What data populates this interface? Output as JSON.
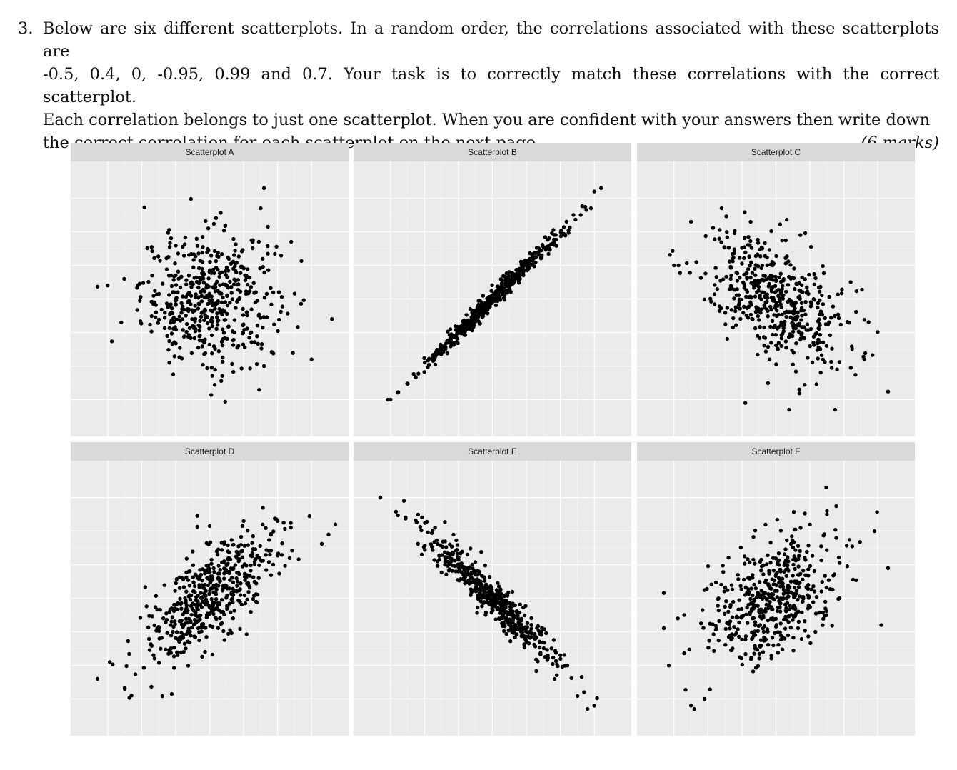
{
  "question": {
    "number": "3.",
    "line1": "Below are six different scatterplots. In a random order, the correlations associated with these scatterplots are",
    "line2": "-0.5, 0.4, 0, -0.95, 0.99 and 0.7. Your task is to correctly match these correlations with the correct scatterplot.",
    "line3": "Each correlation belongs to just one scatterplot. When you are confident with your answers then write down",
    "line4": "the correct correlation for each scatterplot on the next page.",
    "marks": "(6 marks)"
  },
  "chart_data": [
    {
      "type": "scatter",
      "title": "Scatterplot A",
      "correlation_sign": "none",
      "x_range": [
        -3.5,
        3.5
      ],
      "y_range": [
        -3.5,
        3.5
      ],
      "grid": true,
      "n_points": 500,
      "outliers": [
        [
          -3.0,
          0.4
        ],
        [
          3.6,
          -0.6
        ],
        [
          1.6,
          3.3
        ],
        [
          1.5,
          2.7
        ],
        [
          2.4,
          1.7
        ],
        [
          1.6,
          -2.0
        ],
        [
          -2.6,
          -0.7
        ]
      ]
    },
    {
      "type": "scatter",
      "title": "Scatterplot B",
      "correlation_sign": "strong-positive",
      "x_range": [
        -3.5,
        3.5
      ],
      "y_range": [
        -3.5,
        3.5
      ],
      "grid": true,
      "n_points": 500,
      "outliers": [
        [
          -3.0,
          -3.0
        ],
        [
          3.0,
          3.2
        ],
        [
          3.2,
          3.3
        ],
        [
          2.9,
          2.7
        ],
        [
          2.6,
          2.5
        ]
      ]
    },
    {
      "type": "scatter",
      "title": "Scatterplot C",
      "correlation_sign": "moderate-negative",
      "x_range": [
        -3.5,
        3.5
      ],
      "y_range": [
        -3.5,
        3.5
      ],
      "grid": true,
      "n_points": 500,
      "outliers": [
        [
          -2.5,
          2.3
        ],
        [
          -1.6,
          2.7
        ],
        [
          -3.0,
          1.0
        ],
        [
          2.2,
          0.5
        ],
        [
          2.6,
          -1.8
        ],
        [
          -0.9,
          -3.1
        ],
        [
          1.8,
          -2.1
        ]
      ]
    },
    {
      "type": "scatter",
      "title": "Scatterplot D",
      "correlation_sign": "positive",
      "x_range": [
        -3.5,
        3.5
      ],
      "y_range": [
        -3.5,
        3.5
      ],
      "grid": true,
      "n_points": 500,
      "outliers": [
        [
          -3.3,
          -2.4
        ],
        [
          3.7,
          2.2
        ],
        [
          3.5,
          1.9
        ],
        [
          -2.3,
          -2.9
        ],
        [
          -2.5,
          -2.7
        ],
        [
          1.0,
          2.3
        ],
        [
          2.0,
          2.3
        ]
      ]
    },
    {
      "type": "scatter",
      "title": "Scatterplot E",
      "correlation_sign": "strong-negative",
      "x_range": [
        -3.5,
        3.5
      ],
      "y_range": [
        -3.5,
        3.5
      ],
      "grid": true,
      "n_points": 500,
      "outliers": [
        [
          -3.3,
          3.0
        ],
        [
          3.0,
          -3.2
        ],
        [
          2.8,
          -3.3
        ],
        [
          2.7,
          -2.8
        ]
      ]
    },
    {
      "type": "scatter",
      "title": "Scatterplot F",
      "correlation_sign": "weak-positive",
      "x_range": [
        -3.5,
        3.5
      ],
      "y_range": [
        -3.5,
        3.5
      ],
      "grid": true,
      "n_points": 500,
      "outliers": [
        [
          -2.5,
          -3.2
        ],
        [
          -2.4,
          -3.3
        ],
        [
          3.1,
          -0.8
        ],
        [
          2.9,
          2.0
        ],
        [
          -2.7,
          -0.5
        ],
        [
          1.5,
          2.5
        ]
      ]
    }
  ]
}
